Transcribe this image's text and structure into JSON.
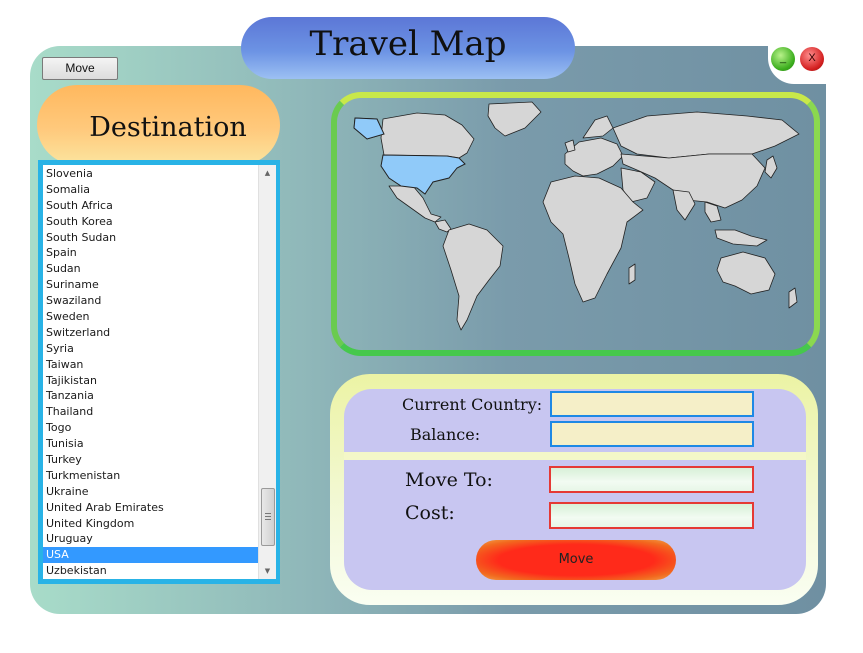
{
  "window": {
    "title": "Travel Map",
    "move_label": "Move",
    "minimize_label": "_",
    "close_label": "X"
  },
  "destination": {
    "title": "Destination",
    "countries": [
      "Slovenia",
      "Somalia",
      "South Africa",
      "South Korea",
      "South Sudan",
      "Spain",
      "Sudan",
      "Suriname",
      "Swaziland",
      "Sweden",
      "Switzerland",
      "Syria",
      "Taiwan",
      "Tajikistan",
      "Tanzania",
      "Thailand",
      "Togo",
      "Tunisia",
      "Turkey",
      "Turkmenistan",
      "Ukraine",
      "United Arab Emirates",
      "United Kingdom",
      "Uruguay",
      "USA",
      "Uzbekistan"
    ],
    "selected": "USA"
  },
  "map": {
    "highlighted_country": "USA",
    "land_color": "#d6d6d6",
    "highlight_color": "#90caf9"
  },
  "info": {
    "current_country_label": "Current Country:",
    "current_country_value": "",
    "balance_label": "Balance:",
    "balance_value": "",
    "move_to_label": "Move To:",
    "move_to_value": "",
    "cost_label": "Cost:",
    "cost_value": "",
    "move_button_label": "Move"
  },
  "colors": {
    "list_border": "#29b3e6",
    "selection": "#3399ff",
    "move_button": "#ff2a1a"
  }
}
